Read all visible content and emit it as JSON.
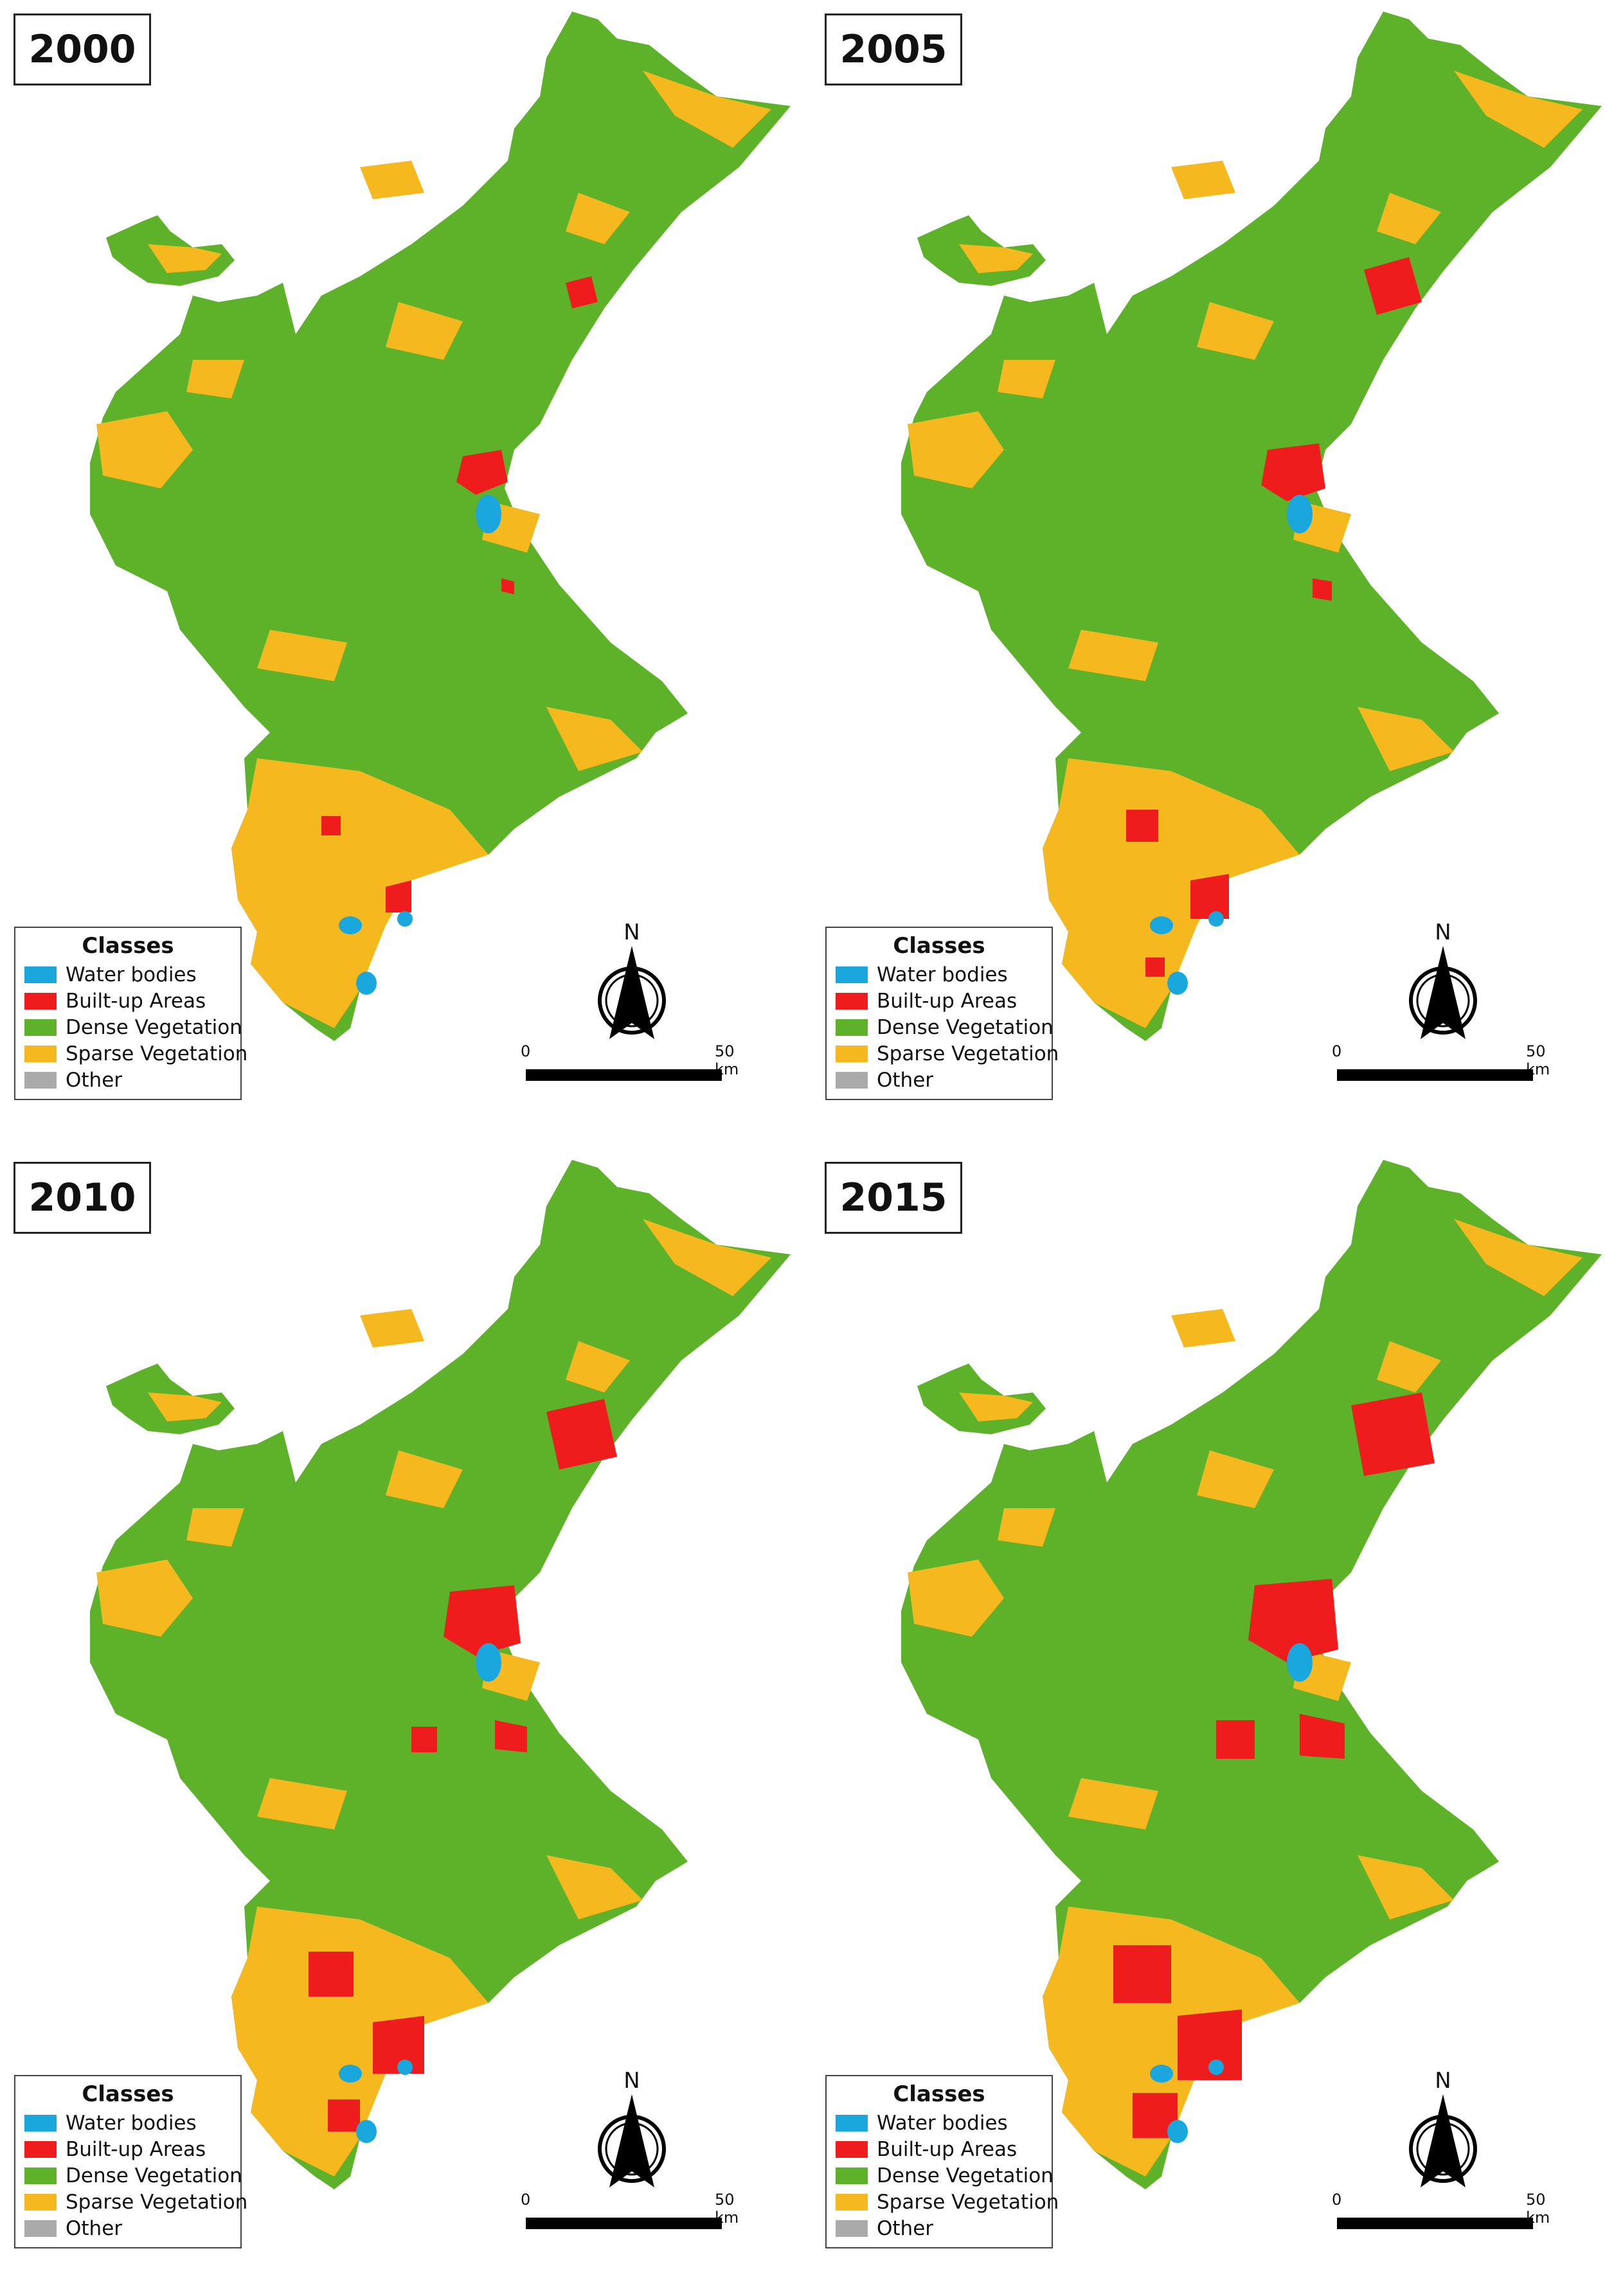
{
  "legend_title": "Classes",
  "classes": [
    {
      "name": "Water bodies",
      "color": "#1aa7dd"
    },
    {
      "name": "Built-up Areas",
      "color": "#ee1c1c"
    },
    {
      "name": "Dense Vegetation",
      "color": "#5db22a"
    },
    {
      "name": "Sparse Vegetation",
      "color": "#f6b81f"
    },
    {
      "name": "Other",
      "color": "#aaaaaa"
    }
  ],
  "north_label": "N",
  "scale": {
    "start_label": "0",
    "end_label": "50 km"
  },
  "panels": [
    {
      "year": "2000"
    },
    {
      "year": "2005"
    },
    {
      "year": "2010"
    },
    {
      "year": "2015"
    }
  ]
}
